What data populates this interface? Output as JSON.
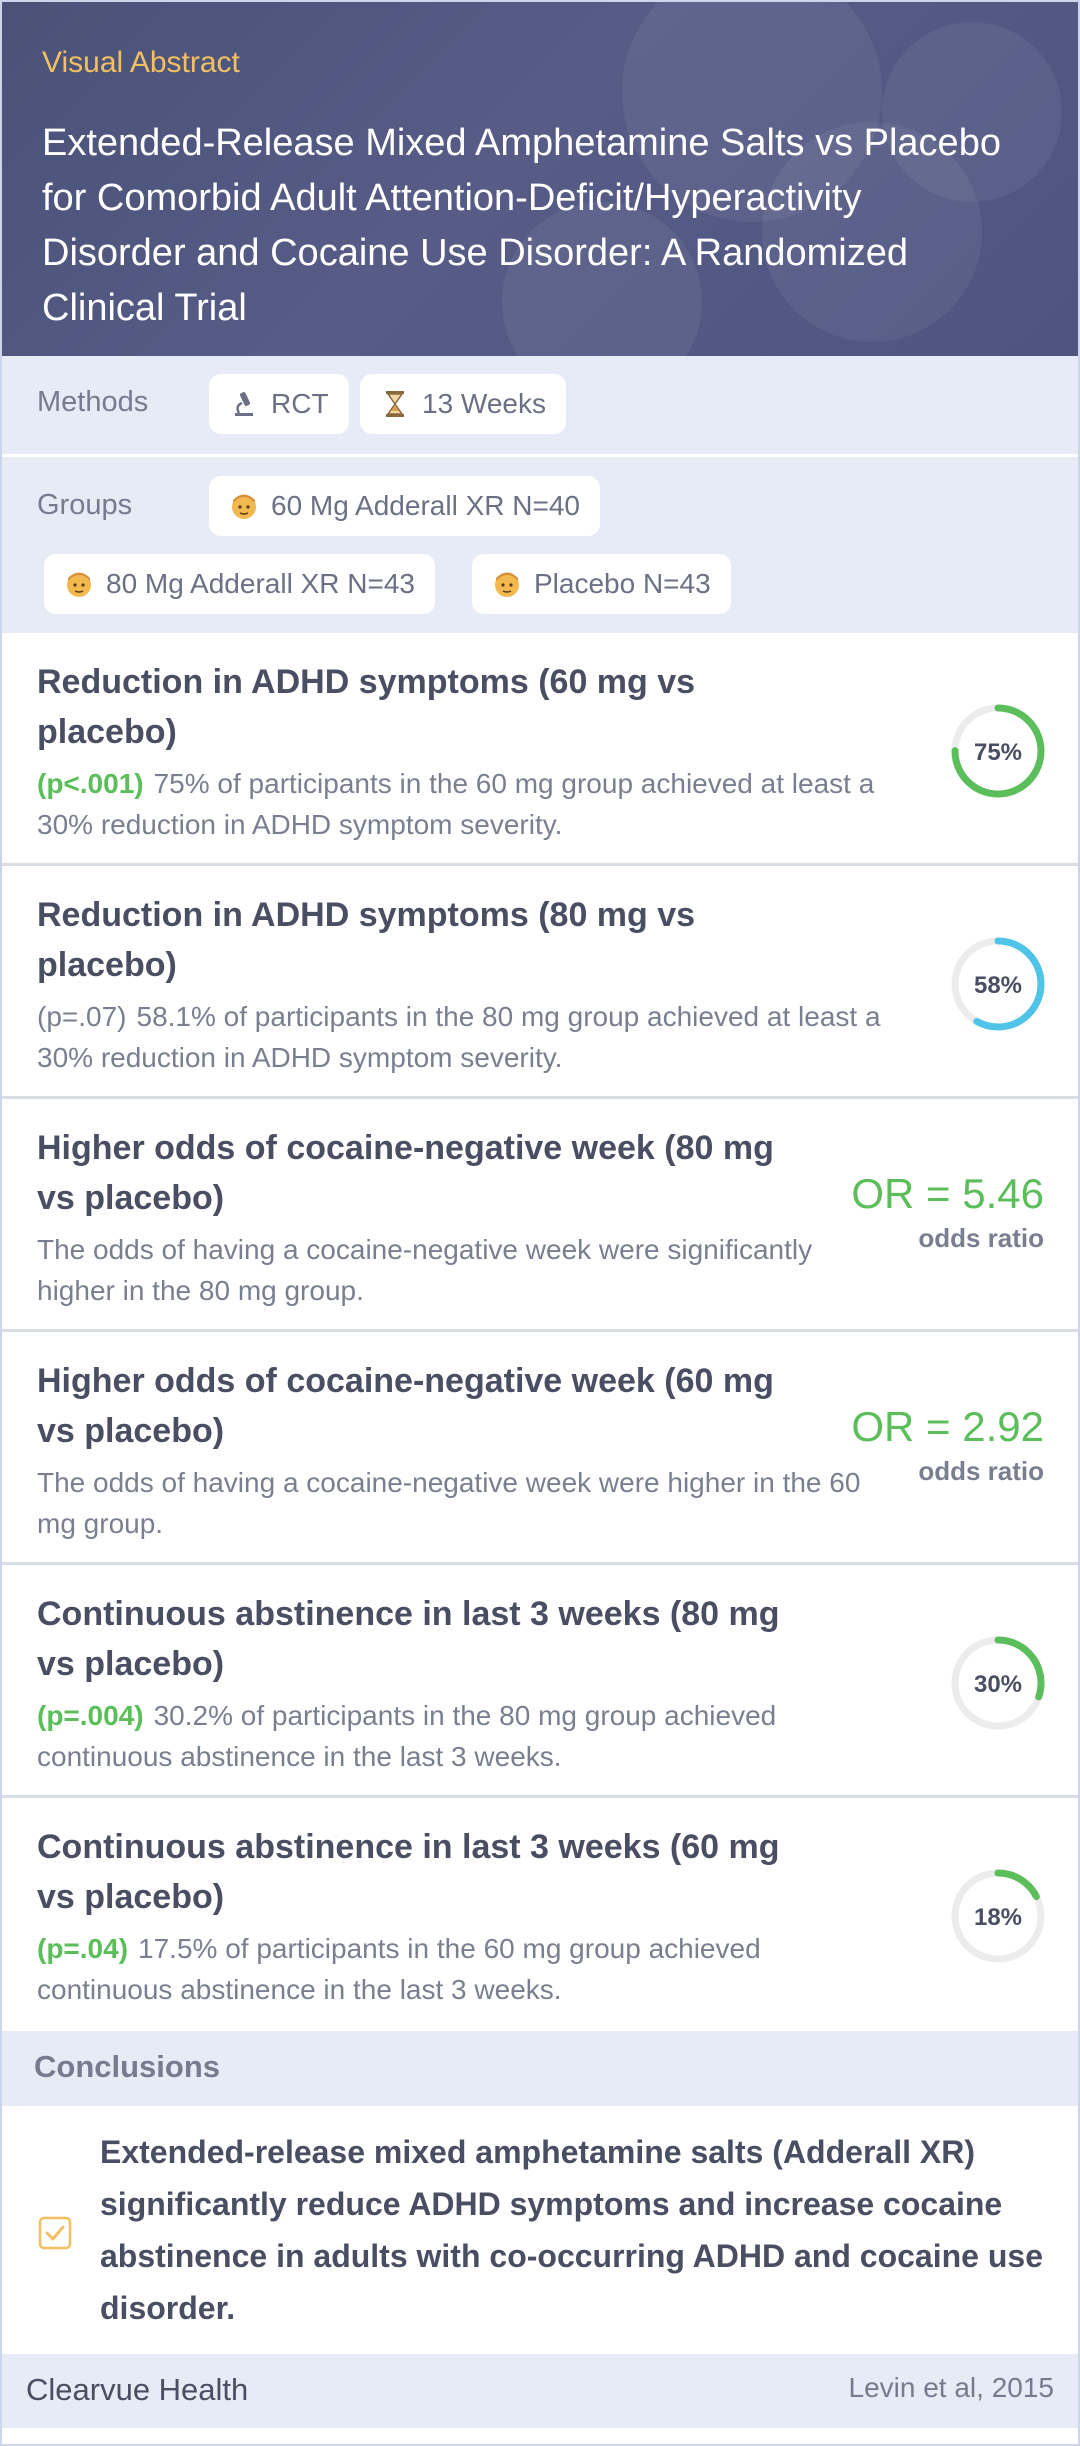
{
  "header": {
    "eyebrow": "Visual Abstract",
    "title": "Extended-Release Mixed Amphetamine Salts vs Placebo for Comorbid Adult Attention-Deficit/Hyperactivity Disorder and Cocaine Use Disorder: A Randomized Clinical Trial"
  },
  "methods": {
    "label": "Methods",
    "chips": [
      {
        "icon": "microscope-icon",
        "text": "RCT"
      },
      {
        "icon": "hourglass-icon",
        "text": "13 Weeks"
      }
    ]
  },
  "groups": {
    "label": "Groups",
    "chips": [
      {
        "icon": "person-icon",
        "text": "60 Mg Adderall XR N=40"
      },
      {
        "icon": "person-icon",
        "text": "80 Mg Adderall XR N=43"
      },
      {
        "icon": "person-icon",
        "text": "Placebo N=43"
      }
    ]
  },
  "findings": [
    {
      "title": "Reduction in ADHD symptoms (60 mg vs placebo)",
      "p": "(p<.001)",
      "text": "75% of participants in the 60 mg group achieved at least a 30% reduction in ADHD symptom severity.",
      "ring_label": "75%",
      "ring_value": 0.75
    },
    {
      "title": "Reduction in ADHD symptoms (80 mg vs placebo)",
      "p": "(p=.07)",
      "text": "58.1% of participants in the 80 mg group achieved at least a 30% reduction in ADHD symptom severity.",
      "ring_label": "58%",
      "ring_value": 0.581
    },
    {
      "title": "Higher odds of cocaine-negative week (80 mg vs placebo)",
      "text": "The odds of having a cocaine-negative week were significantly higher in the 80 mg group.",
      "or_value": "OR = 5.46",
      "or_label": "odds ratio"
    },
    {
      "title": "Higher odds of cocaine-negative week (60 mg vs placebo)",
      "text": "The odds of having a cocaine-negative week were higher in the 60 mg group.",
      "or_value": "OR = 2.92",
      "or_label": "odds ratio"
    },
    {
      "title": "Continuous abstinence in last 3 weeks (80 mg vs placebo)",
      "p": "(p=.004)",
      "text": "30.2% of participants in the 80 mg group achieved continuous abstinence in the last 3 weeks.",
      "ring_label": "30%",
      "ring_value": 0.302
    },
    {
      "title": "Continuous abstinence in last 3 weeks (60 mg vs placebo)",
      "p": "(p=.04)",
      "text": "17.5% of participants in the 60 mg group achieved continuous abstinence in the last 3 weeks.",
      "ring_label": "18%",
      "ring_value": 0.175
    }
  ],
  "conclusions": {
    "label": "Conclusions",
    "text": "Extended-release mixed amphetamine salts (Adderall XR) significantly reduce ADHD symptoms and increase cocaine abstinence in adults with co-occurring ADHD and cocaine use disorder."
  },
  "footer": {
    "brand": "Clearvue Health",
    "citation": "Levin et al, 2015"
  },
  "colors": {
    "accent_green": "#5cbe5a",
    "accent_cyan": "#4fc3e8",
    "eyebrow_gold": "#f2c063",
    "header_bg": "#4f5680"
  }
}
